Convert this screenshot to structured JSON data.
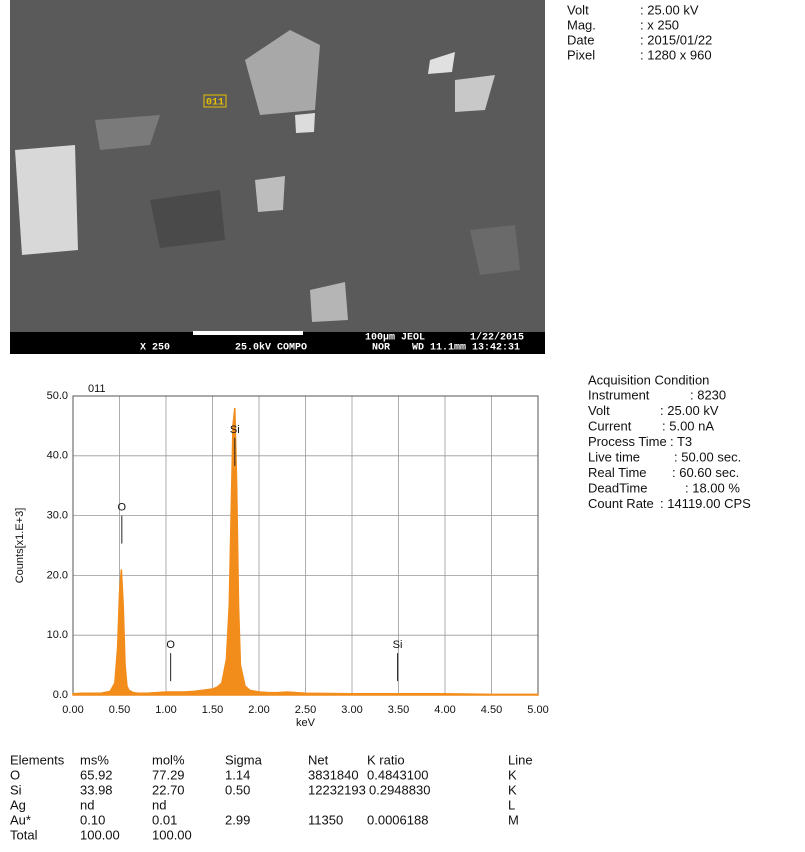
{
  "sem_image": {
    "marker": "011",
    "scale_text": "100µm JEOL",
    "date_text": "1/22/2015",
    "bottom": [
      "X 250",
      "25.0kV COMPO",
      "NOR",
      "WD 11.1mm 13:42:31"
    ]
  },
  "image_info": [
    {
      "key": "Volt",
      "value": ": 25.00 kV"
    },
    {
      "key": "Mag.",
      "value": ": x 250"
    },
    {
      "key": "Date",
      "value": ": 2015/01/22"
    },
    {
      "key": "Pixel",
      "value": ": 1280 x 960"
    }
  ],
  "acquisition": {
    "title": "Acquisition Condition",
    "rows": [
      {
        "key": "Instrument",
        "value": ": 8230"
      },
      {
        "key": "Volt",
        "value": ": 25.00 kV"
      },
      {
        "key": "Current",
        "value": ": 5.00 nA"
      },
      {
        "key": "Process Time",
        "value": ": T3"
      },
      {
        "key": "Live time",
        "value": ": 50.00 sec."
      },
      {
        "key": "Real Time",
        "value": ": 60.60 sec."
      },
      {
        "key": "DeadTime",
        "value": ": 18.00 %"
      },
      {
        "key": "Count Rate",
        "value": ": 14119.00 CPS"
      }
    ]
  },
  "chart_data": {
    "type": "area",
    "title": "011",
    "x_label": "keV",
    "y_label": "Counts[x1.E+3]",
    "color": "#f28c1a",
    "grid": true,
    "xlim": [
      0,
      5
    ],
    "ylim": [
      0,
      50
    ],
    "xticks": [
      {
        "value": 0,
        "label": "0.00"
      },
      {
        "value": 0.5,
        "label": "0.50"
      },
      {
        "value": 1,
        "label": "1.00"
      },
      {
        "value": 1.5,
        "label": "1.50"
      },
      {
        "value": 2,
        "label": "2.00"
      },
      {
        "value": 2.5,
        "label": "2.50"
      },
      {
        "value": 3,
        "label": "3.00"
      },
      {
        "value": 3.5,
        "label": "3.50"
      },
      {
        "value": 4,
        "label": "4.00"
      },
      {
        "value": 4.5,
        "label": "4.50"
      },
      {
        "value": 5,
        "label": "5.00"
      }
    ],
    "yticks": [
      {
        "value": 0,
        "label": "0.0"
      },
      {
        "value": 10,
        "label": "10.0"
      },
      {
        "value": 20,
        "label": "20.0"
      },
      {
        "value": 30,
        "label": "30.0"
      },
      {
        "value": 40,
        "label": "40.0"
      },
      {
        "value": 50,
        "label": "50.0"
      }
    ],
    "x": [
      0,
      0.1,
      0.2,
      0.3,
      0.4,
      0.45,
      0.48,
      0.5,
      0.52,
      0.54,
      0.56,
      0.58,
      0.6,
      0.65,
      0.7,
      0.8,
      0.9,
      1.0,
      1.1,
      1.2,
      1.3,
      1.4,
      1.5,
      1.55,
      1.6,
      1.65,
      1.68,
      1.7,
      1.72,
      1.74,
      1.76,
      1.78,
      1.8,
      1.85,
      1.9,
      2.0,
      2.1,
      2.2,
      2.3,
      2.5,
      3.0,
      3.5,
      4.0,
      4.5,
      5.0
    ],
    "values": [
      0.2,
      0.3,
      0.3,
      0.3,
      0.6,
      2,
      8,
      17,
      21,
      15,
      5,
      1.5,
      0.8,
      0.4,
      0.3,
      0.3,
      0.4,
      0.5,
      0.5,
      0.5,
      0.6,
      0.8,
      1,
      1.3,
      2,
      6,
      15,
      30,
      45,
      48,
      35,
      15,
      5,
      1.5,
      0.8,
      0.5,
      0.4,
      0.4,
      0.5,
      0.3,
      0.2,
      0.2,
      0.2,
      0.1,
      0.1
    ],
    "peak_markers": [
      {
        "label": "O",
        "x": 0.525,
        "y": 30
      },
      {
        "label": "O",
        "x": 1.05,
        "y": 7
      },
      {
        "label": "Si",
        "x": 1.74,
        "y": 43
      },
      {
        "label": "Si",
        "x": 3.49,
        "y": 7
      }
    ]
  },
  "table": {
    "header": [
      "Elements",
      "ms%",
      "mol%",
      "Sigma",
      "Net",
      "K ratio",
      "Line"
    ],
    "rows": [
      [
        "O",
        "65.92",
        "77.29",
        "1.14",
        "3831840",
        "0.4843100",
        "K"
      ],
      [
        "Si",
        "33.98",
        "22.70",
        "0.50",
        "12232193",
        "0.2948830",
        "K"
      ],
      [
        "Ag",
        "nd",
        "nd",
        "",
        "",
        "",
        "L"
      ],
      [
        "Au*",
        "0.10",
        "0.01",
        "2.99",
        "11350",
        "0.0006188",
        "M"
      ],
      [
        "Total",
        "100.00",
        "100.00",
        "",
        "",
        "",
        ""
      ]
    ]
  }
}
